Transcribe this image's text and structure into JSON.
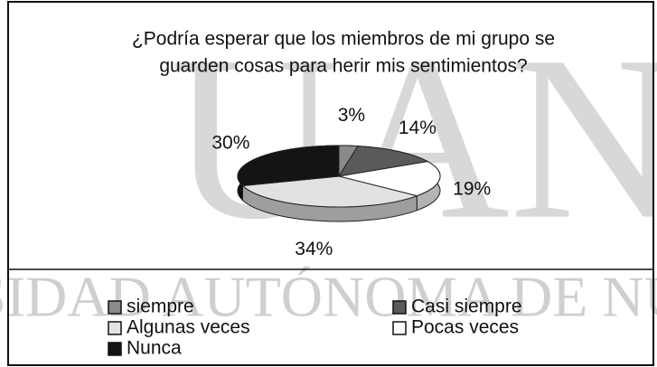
{
  "chart_data": {
    "type": "pie",
    "title": [
      "¿Podría esperar que los miembros de mi grupo se",
      "guarden cosas para herir mis sentimientos?"
    ],
    "categories": [
      "siempre",
      "Casi siempre",
      "Pocas veces",
      "Algunas veces",
      "Nunca"
    ],
    "values": [
      3,
      14,
      19,
      34,
      30
    ],
    "value_labels": [
      "3%",
      "14%",
      "19%",
      "34%",
      "30%"
    ],
    "colors": [
      "#8a8a8a",
      "#5a5a5a",
      "#ffffff",
      "#e2e2e2",
      "#141414"
    ],
    "legend": "bottom"
  },
  "watermark": [
    "UAN",
    "SIDAD AUTÓNOMA DE NU"
  ]
}
